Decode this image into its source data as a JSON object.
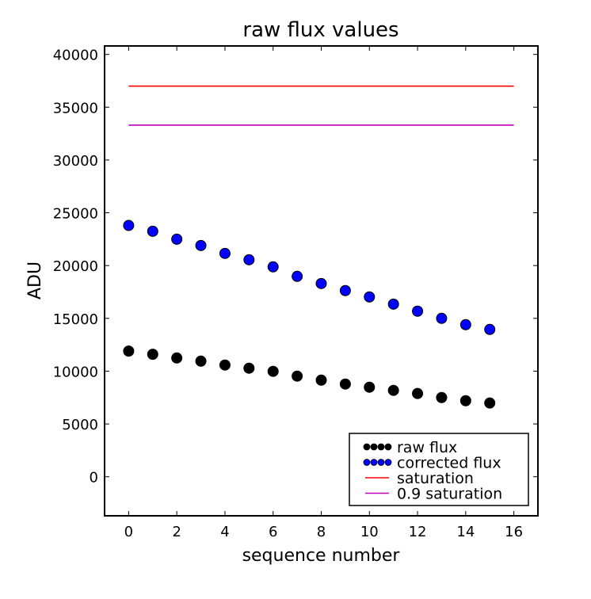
{
  "chart_data": {
    "type": "scatter",
    "title": "raw flux values",
    "xlabel": "sequence number",
    "ylabel": "ADU",
    "xlim": [
      -1,
      17
    ],
    "ylim": [
      -3700,
      40800
    ],
    "xticks": [
      0,
      2,
      4,
      6,
      8,
      10,
      12,
      14,
      16
    ],
    "yticks": [
      0,
      5000,
      10000,
      15000,
      20000,
      25000,
      30000,
      35000,
      40000
    ],
    "grid": false,
    "legend_placement": "lower-right",
    "series": [
      {
        "name": "raw flux",
        "kind": "scatter",
        "color": "#000000",
        "x": [
          0,
          1,
          2,
          3,
          4,
          5,
          6,
          7,
          8,
          9,
          10,
          11,
          12,
          13,
          14,
          15
        ],
        "y": [
          11900,
          11600,
          11250,
          10950,
          10580,
          10280,
          9980,
          9530,
          9150,
          8780,
          8480,
          8180,
          7880,
          7500,
          7200,
          6980
        ]
      },
      {
        "name": "corrected flux",
        "kind": "scatter",
        "color": "#0000ff",
        "x": [
          0,
          1,
          2,
          3,
          4,
          5,
          6,
          7,
          8,
          9,
          10,
          11,
          12,
          13,
          14,
          15
        ],
        "y": [
          23800,
          23250,
          22500,
          21900,
          21150,
          20550,
          19880,
          18980,
          18300,
          17630,
          17030,
          16350,
          15680,
          15000,
          14400,
          13950
        ]
      },
      {
        "name": "saturation",
        "kind": "line",
        "color": "#ff0000",
        "x": [
          0,
          16
        ],
        "y": [
          37000,
          37000
        ]
      },
      {
        "name": "0.9 saturation",
        "kind": "line",
        "color": "#bf00bf",
        "x": [
          0,
          16
        ],
        "y": [
          33300,
          33300
        ]
      }
    ]
  }
}
